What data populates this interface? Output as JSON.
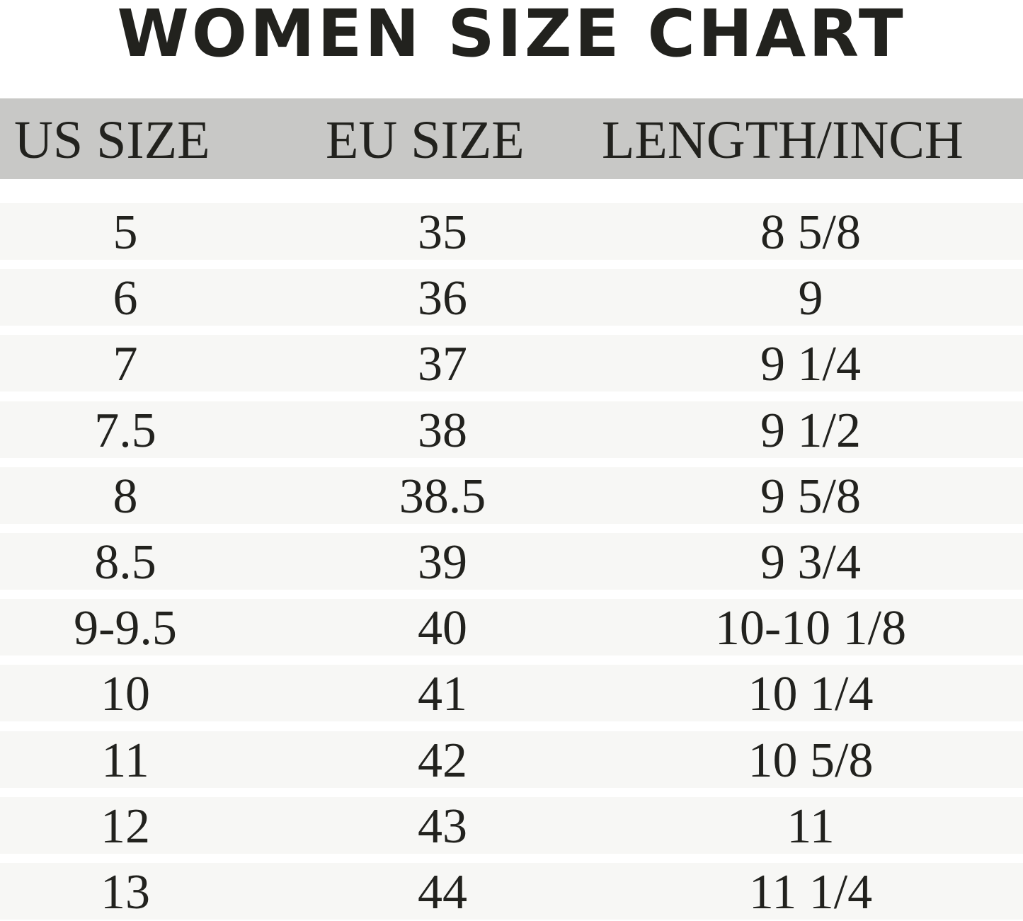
{
  "title": "WOMEN SIZE CHART",
  "columns": [
    "US SIZE",
    "EU SIZE",
    "LENGTH/INCH"
  ],
  "rows": [
    [
      "5",
      "35",
      "8 5/8"
    ],
    [
      "6",
      "36",
      "9"
    ],
    [
      "7",
      "37",
      "9 1/4"
    ],
    [
      "7.5",
      "38",
      "9 1/2"
    ],
    [
      "8",
      "38.5",
      "9 5/8"
    ],
    [
      "8.5",
      "39",
      "9 3/4"
    ],
    [
      "9-9.5",
      "40",
      "10-10 1/8"
    ],
    [
      "10",
      "41",
      "10 1/4"
    ],
    [
      "11",
      "42",
      "10 5/8"
    ],
    [
      "12",
      "43",
      "11"
    ],
    [
      "13",
      "44",
      "11 1/4"
    ]
  ],
  "colors": {
    "header_bg": "#c8c8c6",
    "row_bg": "#f7f7f5",
    "text": "#22221e"
  }
}
